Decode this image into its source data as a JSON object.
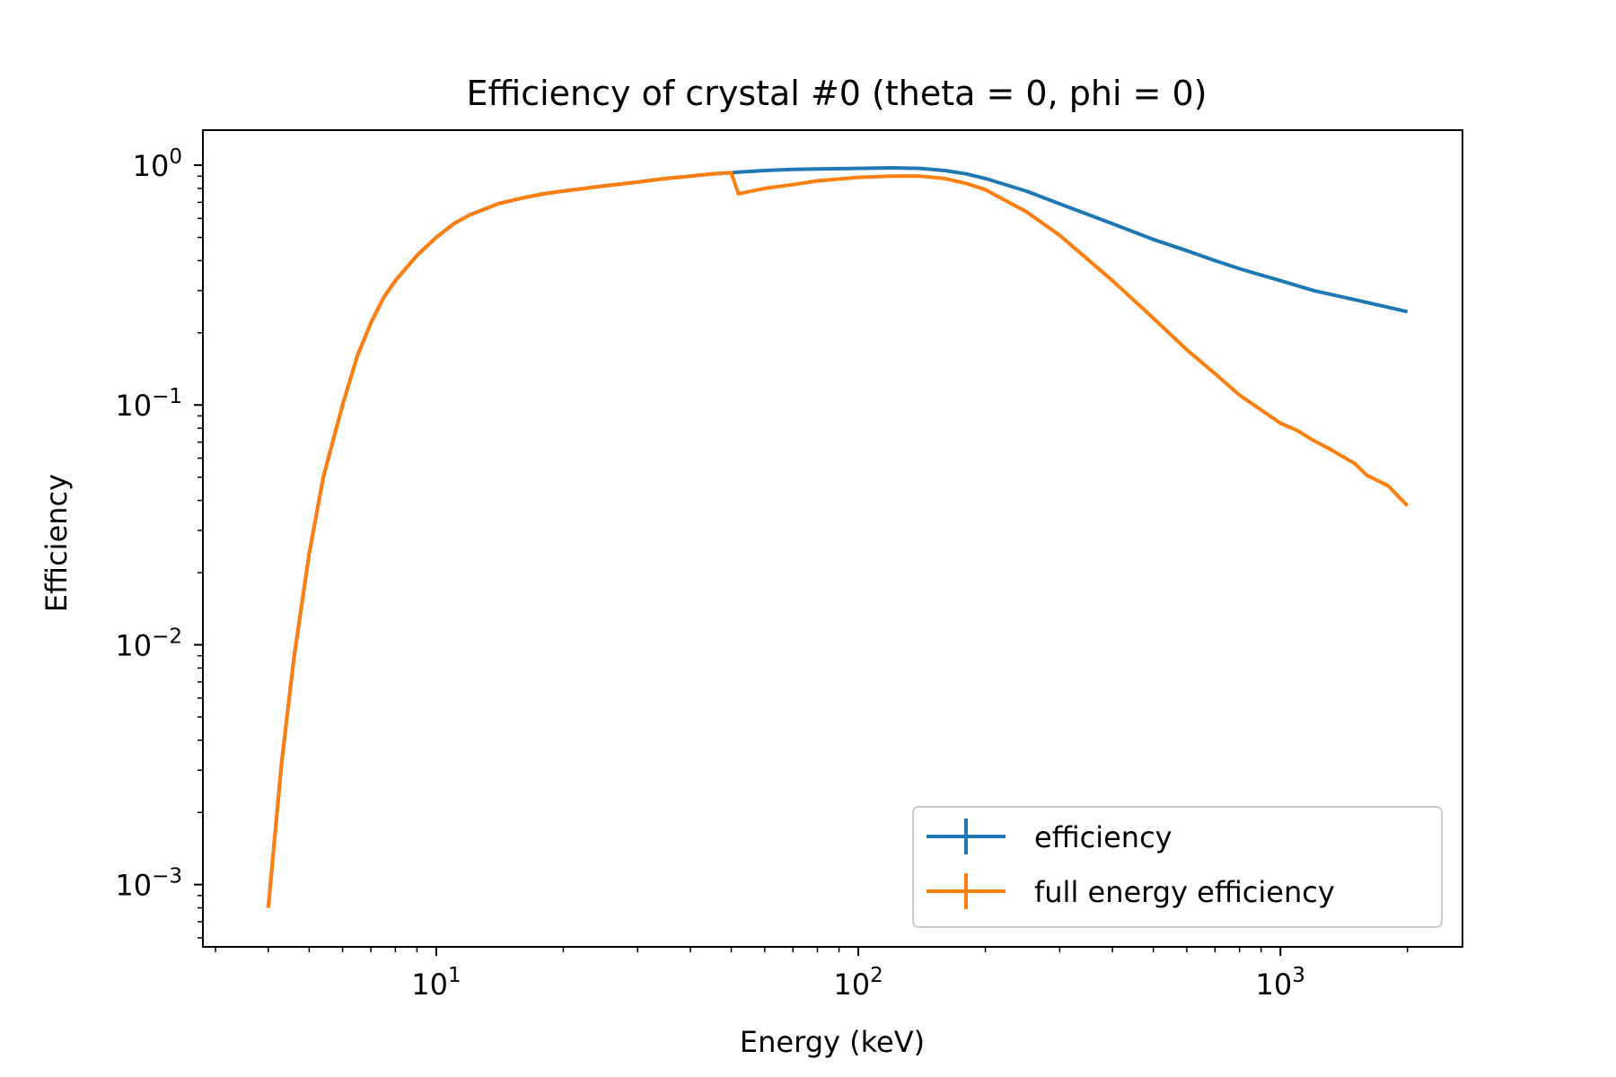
{
  "chart_data": {
    "type": "line",
    "title": "Efficiency of crystal #0 (theta = 0, phi = 0)",
    "xlabel": "Energy (keV)",
    "ylabel": "Efficiency",
    "xscale": "log",
    "yscale": "log",
    "xlim": [
      2.8,
      2700
    ],
    "ylim": [
      0.00055,
      1.4
    ],
    "x_major_ticks": [
      {
        "value": 10,
        "base": "10",
        "exp": "1"
      },
      {
        "value": 100,
        "base": "10",
        "exp": "2"
      },
      {
        "value": 1000,
        "base": "10",
        "exp": "3"
      }
    ],
    "y_major_ticks": [
      {
        "value": 0.001,
        "base": "10",
        "exp": "−3"
      },
      {
        "value": 0.01,
        "base": "10",
        "exp": "−2"
      },
      {
        "value": 0.1,
        "base": "10",
        "exp": "−1"
      },
      {
        "value": 1,
        "base": "10",
        "exp": "0"
      }
    ],
    "legend_position": "bottom-right",
    "series": [
      {
        "name": "efficiency",
        "color": "#1f77b4",
        "x": [
          4,
          4.3,
          4.6,
          5,
          5.4,
          6,
          6.5,
          7,
          7.5,
          8,
          9,
          10,
          11,
          12,
          14,
          16,
          18,
          20,
          25,
          30,
          35,
          40,
          45,
          50,
          52,
          60,
          70,
          80,
          100,
          120,
          140,
          160,
          180,
          200,
          250,
          300,
          400,
          500,
          600,
          700,
          800,
          1000,
          1200,
          1500,
          2000
        ],
        "values": [
          0.0008,
          0.0032,
          0.0088,
          0.024,
          0.05,
          0.1,
          0.16,
          0.22,
          0.28,
          0.33,
          0.42,
          0.5,
          0.57,
          0.62,
          0.69,
          0.73,
          0.76,
          0.78,
          0.82,
          0.85,
          0.88,
          0.9,
          0.92,
          0.93,
          0.935,
          0.95,
          0.96,
          0.965,
          0.97,
          0.975,
          0.97,
          0.95,
          0.92,
          0.88,
          0.78,
          0.69,
          0.57,
          0.49,
          0.44,
          0.4,
          0.37,
          0.33,
          0.3,
          0.275,
          0.245
        ]
      },
      {
        "name": "full energy efficiency",
        "color": "#ff7f0e",
        "x": [
          4,
          4.3,
          4.6,
          5,
          5.4,
          6,
          6.5,
          7,
          7.5,
          8,
          9,
          10,
          11,
          12,
          14,
          16,
          18,
          20,
          25,
          30,
          35,
          40,
          45,
          50,
          52,
          60,
          70,
          80,
          100,
          120,
          140,
          160,
          180,
          200,
          250,
          300,
          400,
          500,
          600,
          700,
          800,
          1000,
          1100,
          1200,
          1300,
          1500,
          1600,
          1800,
          2000
        ],
        "values": [
          0.0008,
          0.0032,
          0.0088,
          0.024,
          0.05,
          0.1,
          0.16,
          0.22,
          0.28,
          0.33,
          0.42,
          0.5,
          0.57,
          0.62,
          0.69,
          0.73,
          0.76,
          0.78,
          0.82,
          0.85,
          0.88,
          0.9,
          0.92,
          0.93,
          0.76,
          0.8,
          0.83,
          0.86,
          0.89,
          0.9,
          0.9,
          0.88,
          0.84,
          0.79,
          0.64,
          0.51,
          0.33,
          0.23,
          0.17,
          0.135,
          0.11,
          0.084,
          0.078,
          0.071,
          0.066,
          0.057,
          0.051,
          0.046,
          0.038
        ]
      }
    ]
  }
}
